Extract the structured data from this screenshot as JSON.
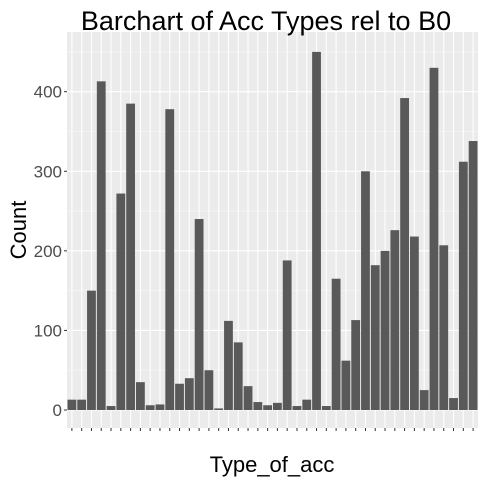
{
  "chart_data": {
    "type": "bar",
    "title": "Barchart of Acc Types rel to B0",
    "x_label": "Type_of_acc",
    "y_label": "Count",
    "categories": [
      null,
      null,
      null,
      null,
      null,
      null,
      null,
      null,
      null,
      null,
      null,
      null,
      null,
      null,
      null,
      null,
      null,
      null,
      null,
      null,
      null,
      null,
      null,
      null,
      null,
      null,
      null,
      null,
      null,
      null,
      null,
      null,
      null,
      null,
      null,
      null,
      null,
      null,
      null,
      null,
      null,
      null
    ],
    "values": [
      13,
      13,
      150,
      413,
      5,
      272,
      385,
      35,
      6,
      7,
      378,
      33,
      40,
      240,
      50,
      2,
      112,
      85,
      30,
      10,
      6,
      9,
      188,
      5,
      13,
      450,
      5,
      165,
      62,
      113,
      300,
      182,
      200,
      226,
      392,
      218,
      25,
      430,
      207,
      15,
      312,
      338
    ],
    "color": "#595959",
    "ylim": [
      -22.6,
      475
    ],
    "yticks": [
      0,
      100,
      200,
      300,
      400
    ],
    "grid": true
  }
}
